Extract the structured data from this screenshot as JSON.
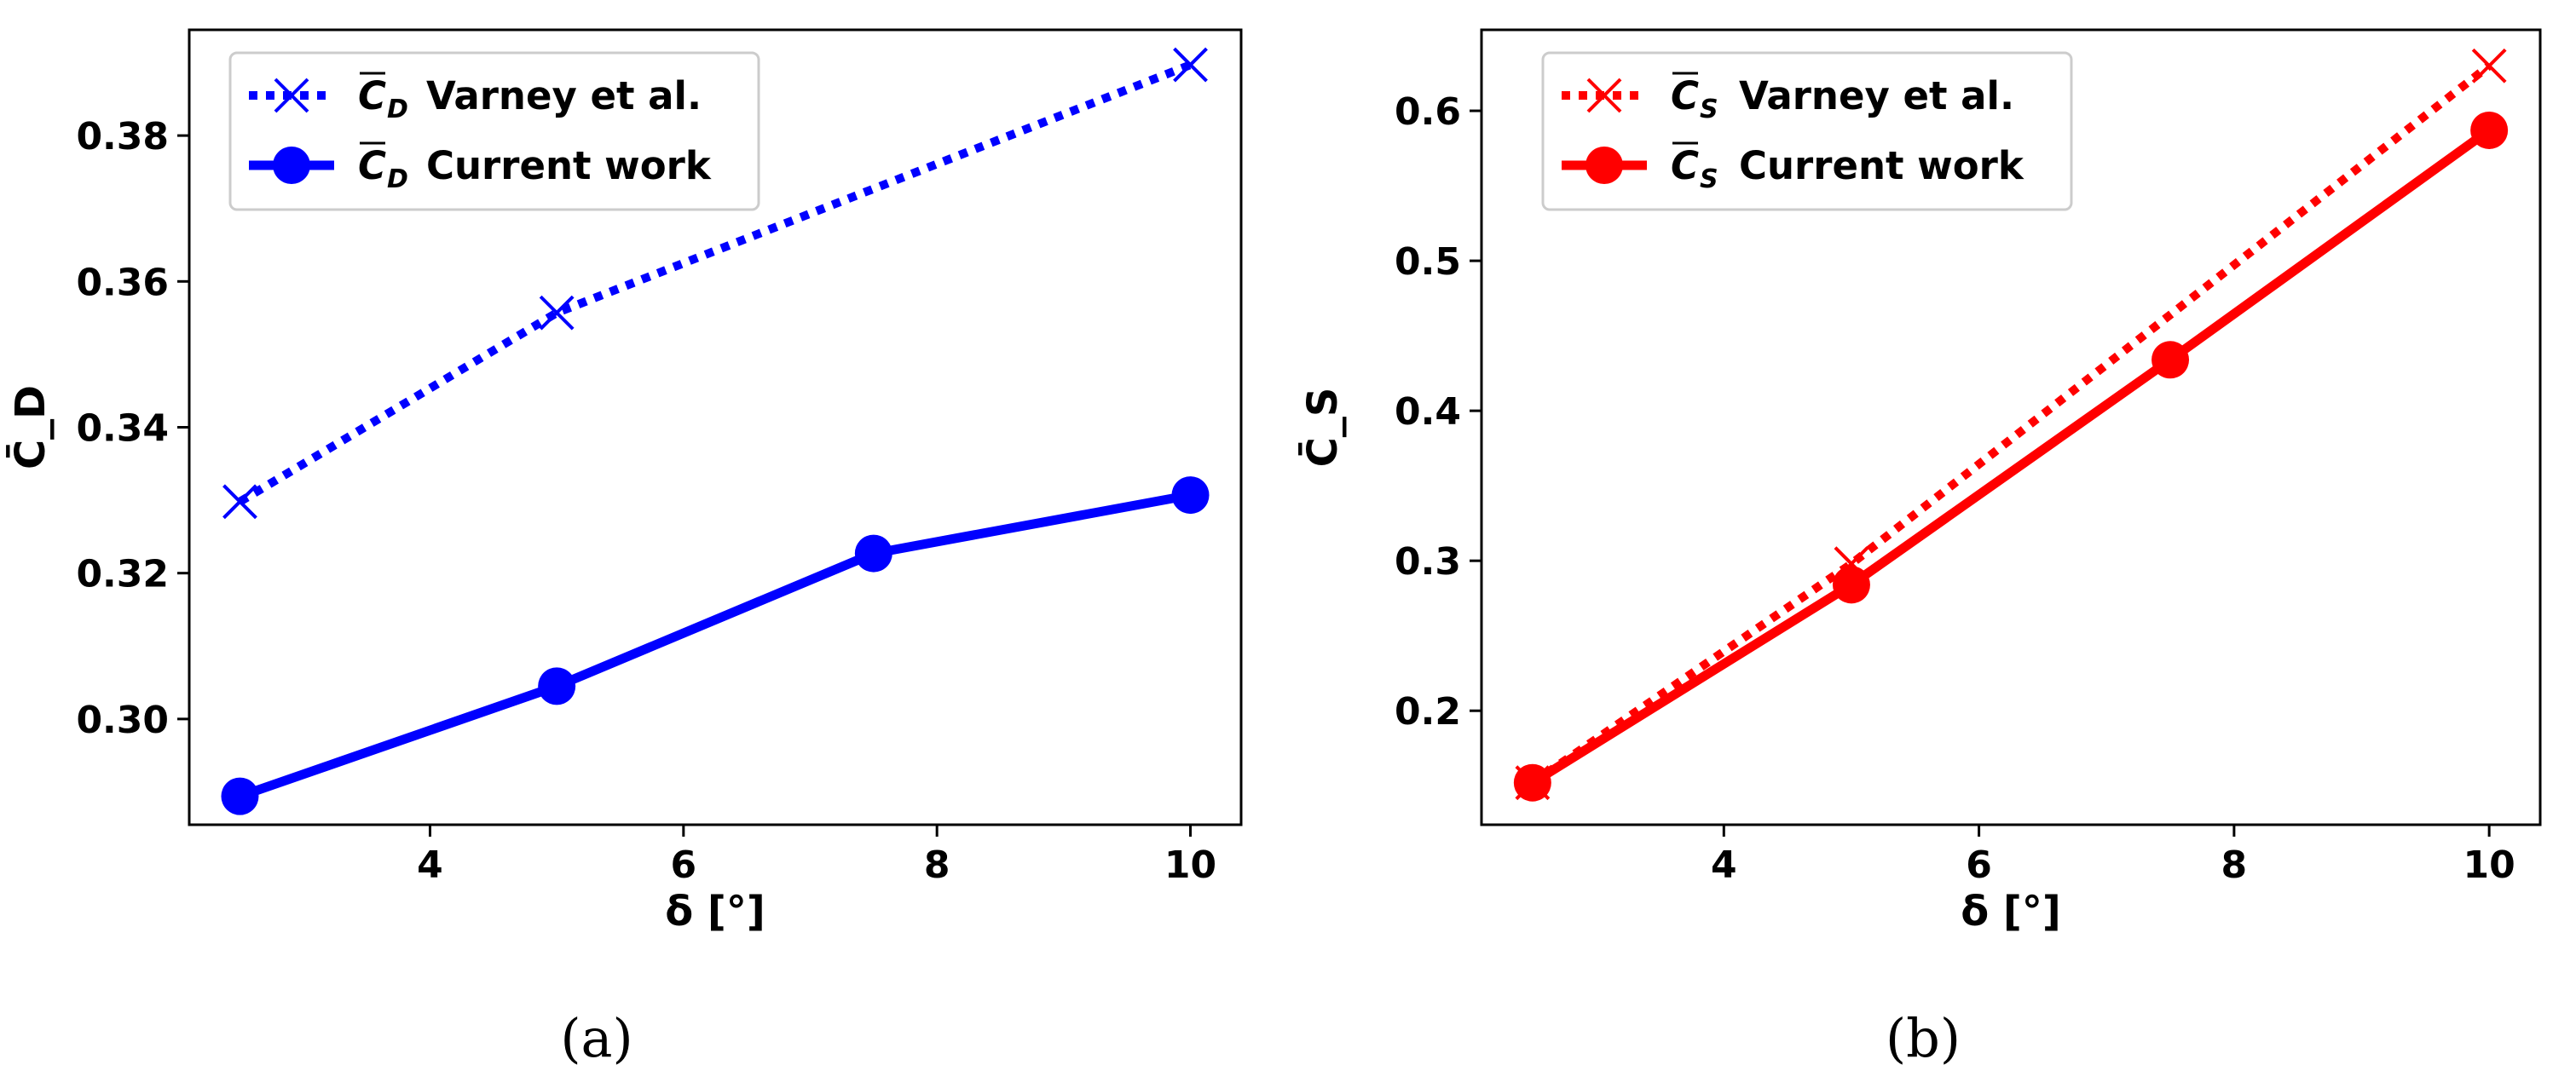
{
  "chart_data": [
    {
      "type": "line",
      "panel": "a",
      "caption": "(a)",
      "xlabel": "δ [°]",
      "ylabel": "C̄_D",
      "xlim": [
        2.1,
        10.4
      ],
      "ylim": [
        0.2855,
        0.3945
      ],
      "xticks": [
        4,
        6,
        8,
        10
      ],
      "xtick_labels": [
        "4",
        "6",
        "8",
        "10"
      ],
      "yticks": [
        0.3,
        0.32,
        0.34,
        0.36,
        0.38
      ],
      "ytick_labels": [
        "0.30",
        "0.32",
        "0.34",
        "0.36",
        "0.38"
      ],
      "grid": false,
      "legend_position": "top-left",
      "series": [
        {
          "name": "C̄_D Varney et al.",
          "legend_sym": "C",
          "legend_sub": "D",
          "legend_text": "Varney et al.",
          "color": "#0000ff",
          "style": "dotted",
          "marker": "x",
          "x": [
            2.5,
            5,
            10
          ],
          "y": [
            0.3298,
            0.3557,
            0.3897
          ]
        },
        {
          "name": "C̄_D Current work",
          "legend_sym": "C",
          "legend_sub": "D",
          "legend_text": "Current work",
          "color": "#0000ff",
          "style": "solid",
          "marker": "o",
          "x": [
            2.5,
            5,
            7.5,
            10
          ],
          "y": [
            0.2894,
            0.3045,
            0.3227,
            0.3307
          ]
        }
      ]
    },
    {
      "type": "line",
      "panel": "b",
      "caption": "(b)",
      "xlabel": "δ [°]",
      "ylabel": "C̄_S",
      "xlim": [
        2.1,
        10.4
      ],
      "ylim": [
        0.124,
        0.654
      ],
      "xticks": [
        4,
        6,
        8,
        10
      ],
      "xtick_labels": [
        "4",
        "6",
        "8",
        "10"
      ],
      "yticks": [
        0.2,
        0.3,
        0.4,
        0.5,
        0.6
      ],
      "ytick_labels": [
        "0.2",
        "0.3",
        "0.4",
        "0.5",
        "0.6"
      ],
      "grid": false,
      "legend_position": "top-left",
      "series": [
        {
          "name": "C̄_S Varney et al.",
          "legend_sym": "C",
          "legend_sub": "S",
          "legend_text": "Varney et al.",
          "color": "#ff0000",
          "style": "dotted",
          "marker": "x",
          "x": [
            2.5,
            5,
            10
          ],
          "y": [
            0.152,
            0.298,
            0.63
          ]
        },
        {
          "name": "C̄_S Current work",
          "legend_sym": "C",
          "legend_sub": "S",
          "legend_text": "Current work",
          "color": "#ff0000",
          "style": "solid",
          "marker": "o",
          "x": [
            2.5,
            5,
            7.5,
            10
          ],
          "y": [
            0.152,
            0.284,
            0.434,
            0.587
          ]
        }
      ]
    }
  ]
}
